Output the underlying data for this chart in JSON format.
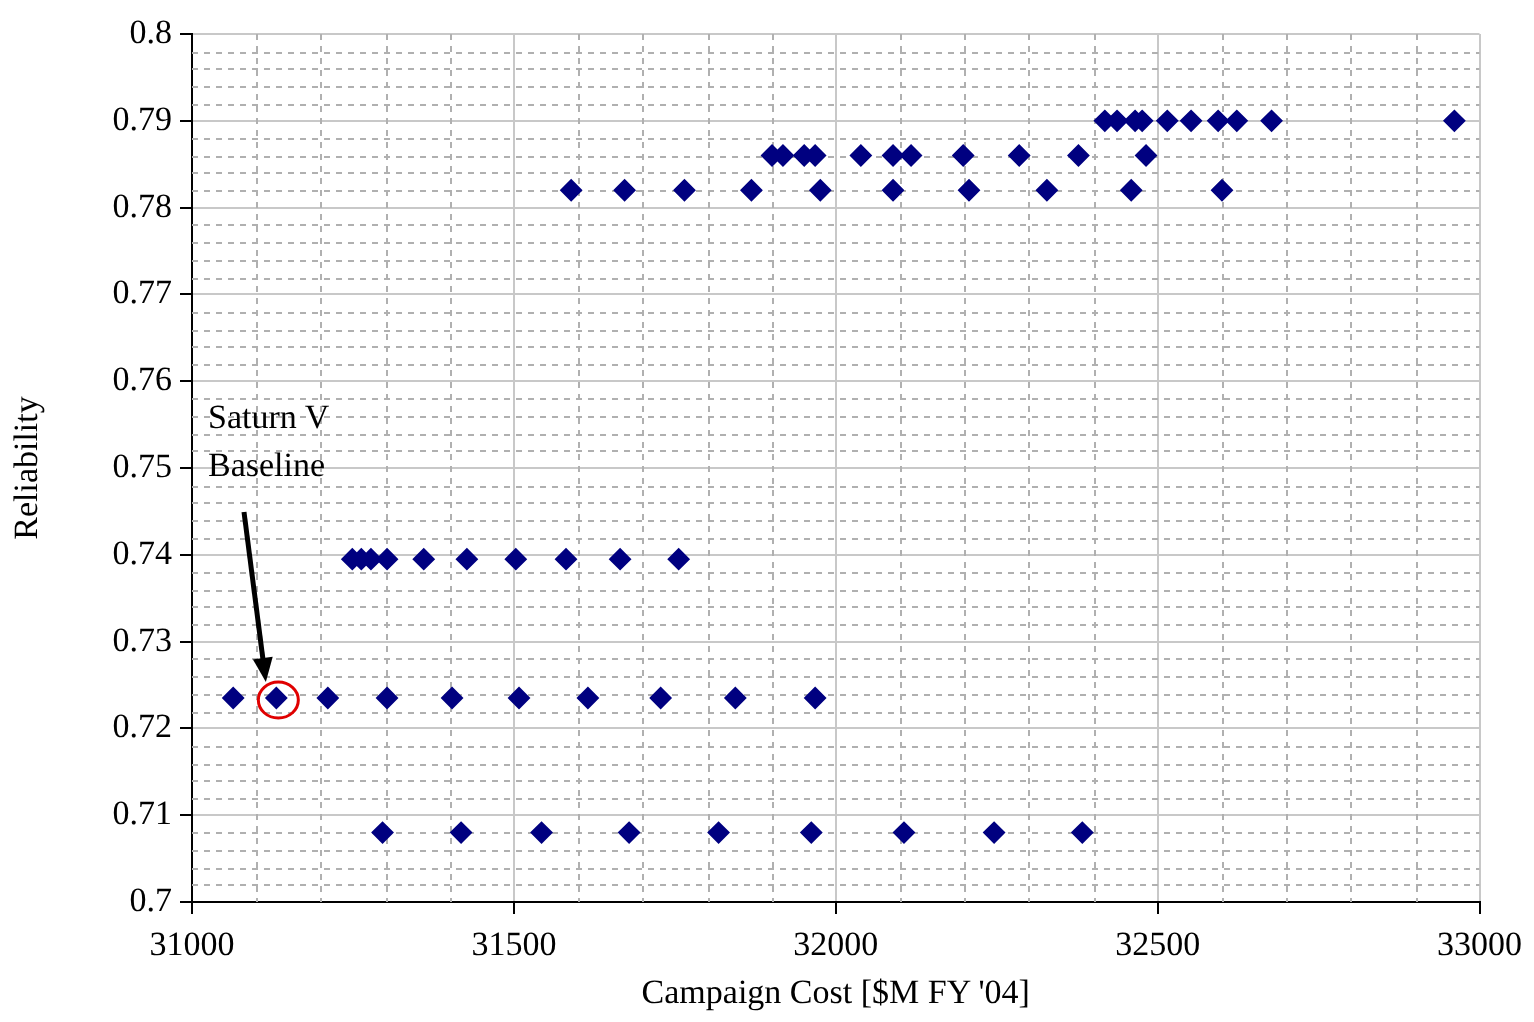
{
  "chart_data": {
    "type": "scatter",
    "xlabel": "Campaign Cost [$M FY '04]",
    "ylabel": "Reliability",
    "series": [
      {
        "color": "#000080",
        "x": [
          32418,
          32437,
          32465,
          32476,
          32515,
          32552,
          32594,
          32623,
          32677,
          32961
        ],
        "values": [
          0.79,
          0.79,
          0.79,
          0.79,
          0.79,
          0.79,
          0.79,
          0.79,
          0.79,
          0.79
        ]
      },
      {
        "color": "#000080",
        "x": [
          31901,
          31918,
          31951,
          31968,
          32039,
          32089,
          32117,
          32198,
          32285,
          32377,
          32482
        ],
        "values": [
          0.786,
          0.786,
          0.786,
          0.786,
          0.786,
          0.786,
          0.786,
          0.786,
          0.786,
          0.786,
          0.786
        ]
      },
      {
        "color": "#000080",
        "x": [
          31589,
          31672,
          31765,
          31869,
          31976,
          32089,
          32207,
          32328,
          32459,
          32600
        ],
        "values": [
          0.782,
          0.782,
          0.782,
          0.782,
          0.782,
          0.782,
          0.782,
          0.782,
          0.782,
          0.782
        ]
      },
      {
        "color": "#000080",
        "x": [
          31249,
          31263,
          31278,
          31303,
          31360,
          31427,
          31503,
          31581,
          31665,
          31756
        ],
        "values": [
          0.7395,
          0.7395,
          0.7395,
          0.7395,
          0.7395,
          0.7395,
          0.7395,
          0.7395,
          0.7395,
          0.7395
        ]
      },
      {
        "color": "#000080",
        "x": [
          31064,
          31131,
          31211,
          31303,
          31404,
          31508,
          31615,
          31728,
          31844,
          31968
        ],
        "values": [
          0.7235,
          0.7235,
          0.7235,
          0.7235,
          0.7235,
          0.7235,
          0.7235,
          0.7235,
          0.7235,
          0.7235
        ]
      },
      {
        "color": "#000080",
        "x": [
          31296,
          31418,
          31543,
          31679,
          31818,
          31962,
          32106,
          32246,
          32383
        ],
        "values": [
          0.708,
          0.708,
          0.708,
          0.708,
          0.708,
          0.708,
          0.708,
          0.708,
          0.708
        ]
      }
    ],
    "xlim": [
      31000,
      33000
    ],
    "xticks": [
      31000,
      31500,
      32000,
      32500,
      33000
    ],
    "ylim": [
      0.7,
      0.8
    ],
    "yticks": [
      0.7,
      0.71,
      0.72,
      0.73,
      0.74,
      0.75,
      0.76,
      0.77,
      0.78,
      0.79,
      0.8
    ],
    "annotations": [
      "Saturn V\nBaseline"
    ],
    "grid": true,
    "legend": false,
    "marker": "diamond"
  }
}
